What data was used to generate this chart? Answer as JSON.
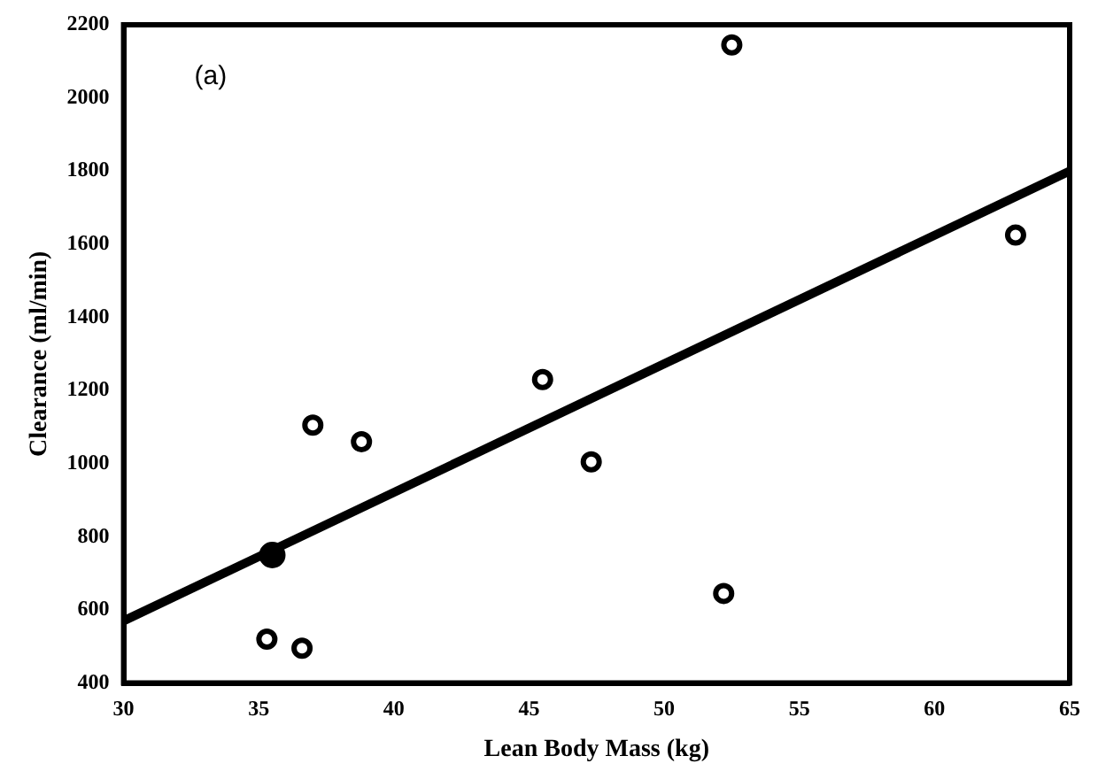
{
  "chart_data": {
    "type": "scatter",
    "xlabel": "Lean Body Mass (kg)",
    "ylabel": "Clearance (ml/min)",
    "annotations": [
      "(a)"
    ],
    "xlim": [
      30,
      65
    ],
    "xticks": [
      30,
      35,
      40,
      45,
      50,
      55,
      60,
      65
    ],
    "ylim": [
      400,
      2200
    ],
    "yticks": [
      400,
      600,
      800,
      1000,
      1200,
      1400,
      1600,
      1800,
      2000,
      2200
    ],
    "grid": false,
    "legend": false,
    "marker": "circle",
    "series": [
      {
        "color": "#000000",
        "x": [
          35.3,
          36.6,
          37,
          38.8,
          45.5,
          47.3,
          52.2,
          52.5,
          63
        ],
        "values": [
          520,
          495,
          1105,
          1060,
          1230,
          1005,
          645,
          2145,
          1625
        ]
      },
      {
        "color": "#000000",
        "x": [
          35.5
        ],
        "values": [
          750
        ]
      },
      {
        "type": "line",
        "marker": "none",
        "color": "#000000",
        "x": [
          30,
          65
        ],
        "values": [
          570,
          1800
        ]
      }
    ]
  }
}
